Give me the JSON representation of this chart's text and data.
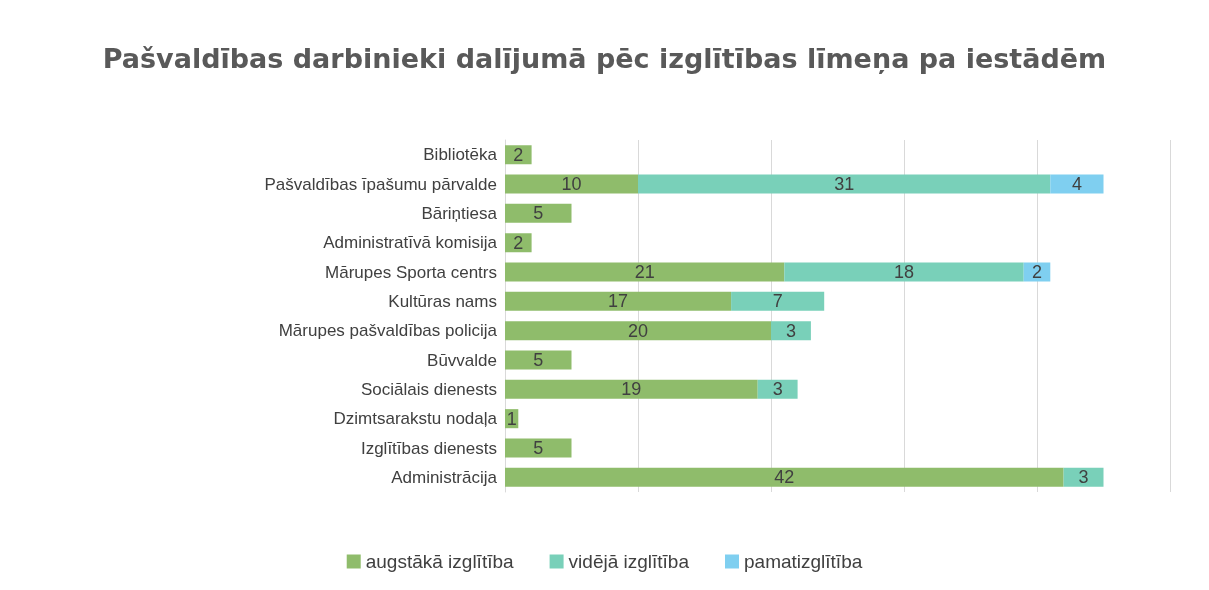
{
  "chart_data": {
    "type": "bar",
    "orientation": "horizontal",
    "stacked": true,
    "title": "Pašvaldības darbinieki dalījumā pēc izglītības līmeņa pa iestādēm",
    "categories": [
      "Bibliotēka",
      "Pašvaldības īpašumu pārvalde",
      "Bāriņtiesa",
      "Administratīvā komisija",
      "Mārupes Sporta centrs",
      "Kultūras nams",
      "Mārupes pašvaldības policija",
      "Būvvalde",
      "Sociālais dienests",
      "Dzimtsarakstu nodaļa",
      "Izglītības dienests",
      "Administrācija"
    ],
    "series": [
      {
        "name": "augstākā izglītība",
        "color": "#8fbc6b",
        "values": [
          2,
          10,
          5,
          2,
          21,
          17,
          20,
          5,
          19,
          1,
          5,
          42
        ]
      },
      {
        "name": "vidējā izglītība",
        "color": "#79d0b9",
        "values": [
          null,
          31,
          null,
          null,
          18,
          7,
          3,
          null,
          3,
          null,
          null,
          3
        ]
      },
      {
        "name": "pamatizglītība",
        "color": "#7fcff0",
        "values": [
          null,
          4,
          null,
          null,
          2,
          null,
          null,
          null,
          null,
          null,
          null,
          null
        ]
      }
    ],
    "xlim": [
      0,
      50
    ],
    "xticks": [
      {
        "value": 0,
        "label": null
      },
      {
        "value": 10,
        "label": null
      },
      {
        "value": 20,
        "label": null
      },
      {
        "value": 30,
        "label": null
      },
      {
        "value": 40,
        "label": null
      },
      {
        "value": 50,
        "label": null
      }
    ],
    "tick_labels": "y",
    "grid": "x",
    "legend": "bottom",
    "data_labels": true
  }
}
